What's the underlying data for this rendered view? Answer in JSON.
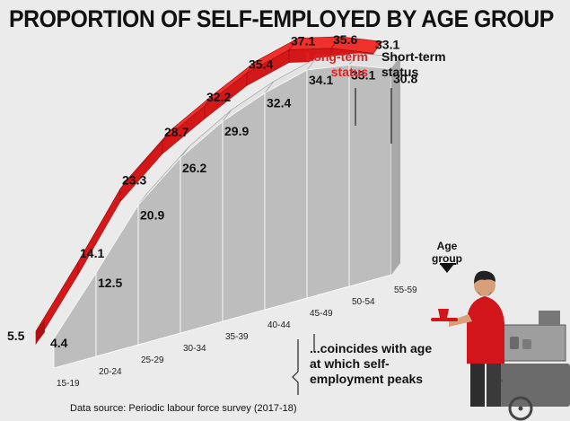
{
  "title": "PROPORTION OF SELF-EMPLOYED BY AGE GROUP",
  "legend": {
    "long_term": "Long-term status",
    "long_term_color": "#e0201e",
    "short_term": "Short-term status",
    "short_term_color": "#bdbdbd"
  },
  "age_group_label": "Age group",
  "annotation": "...coincides with age at which self-employment peaks",
  "source": "Data source: Periodic labour force survey (2017-18)",
  "chart_data": {
    "type": "area",
    "title": "PROPORTION OF SELF-EMPLOYED BY AGE GROUP",
    "xlabel": "Age group",
    "ylabel": "",
    "categories": [
      "15-19",
      "20-24",
      "25-29",
      "30-34",
      "35-39",
      "40-44",
      "45-49",
      "50-54",
      "55-59"
    ],
    "series": [
      {
        "name": "Long-term status",
        "values": [
          5.5,
          14.1,
          23.3,
          28.7,
          32.2,
          35.4,
          37.1,
          35.6,
          33.1
        ],
        "color": "#e0201e"
      },
      {
        "name": "Short-term status",
        "values": [
          4.4,
          12.5,
          20.9,
          26.2,
          29.9,
          32.4,
          34.1,
          33.1,
          30.8
        ],
        "color": "#bdbdbd"
      }
    ],
    "legend_position": "top-right",
    "grid": false
  }
}
